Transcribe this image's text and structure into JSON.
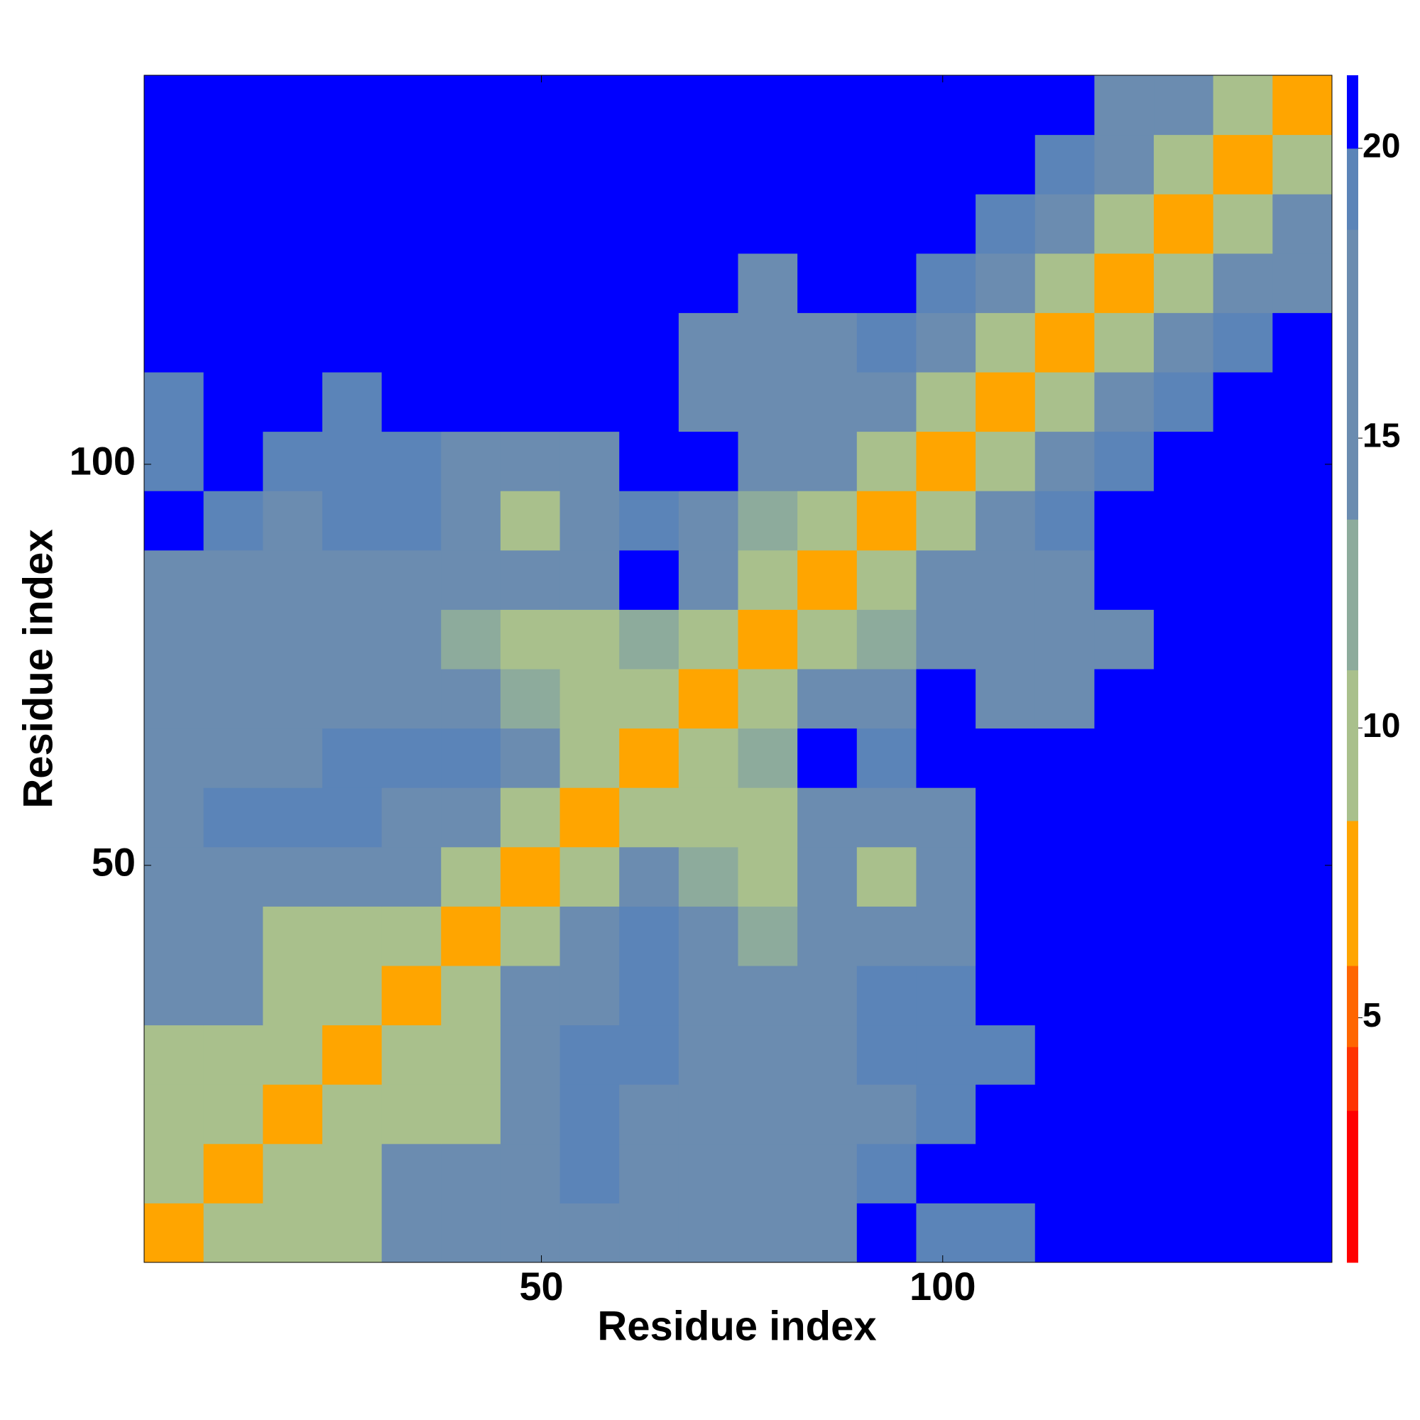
{
  "chart_data": {
    "type": "heatmap",
    "xlabel": "Residue index",
    "ylabel": "Residue index",
    "xlim": [
      0.5,
      148.5
    ],
    "ylim": [
      0.5,
      148.5
    ],
    "xticks": [
      50,
      100
    ],
    "yticks": [
      50,
      100
    ],
    "xbins": [
      0.5,
      7.9,
      15.3,
      22.7,
      30.1,
      37.5,
      44.9,
      52.3,
      59.7,
      67.1,
      74.5,
      81.9,
      89.3,
      96.7,
      104.1,
      111.5,
      118.9,
      126.3,
      133.7,
      141.1,
      148.5
    ],
    "ybins": [
      0.5,
      7.9,
      15.3,
      22.7,
      30.1,
      37.5,
      44.9,
      52.3,
      59.7,
      67.1,
      74.5,
      81.9,
      89.3,
      96.7,
      104.1,
      111.5,
      118.9,
      126.3,
      133.7,
      141.1,
      148.5
    ],
    "z": [
      [
        6,
        11,
        9,
        10,
        16,
        17,
        17,
        18,
        18,
        18,
        17,
        18,
        21,
        20,
        20,
        21,
        21,
        21,
        21,
        21
      ],
      [
        11,
        6,
        11,
        9,
        15,
        15,
        16,
        19,
        17,
        17,
        16,
        16,
        19,
        21,
        21,
        21,
        21,
        21,
        21,
        21
      ],
      [
        9,
        11,
        6,
        11,
        9,
        10,
        16,
        19,
        18,
        18,
        16,
        16,
        18,
        19,
        21,
        21,
        21,
        21,
        21,
        21
      ],
      [
        10,
        9,
        11,
        6,
        11,
        9,
        17,
        20,
        19,
        18,
        17,
        17,
        19,
        19,
        19,
        21,
        21,
        21,
        21,
        21
      ],
      [
        16,
        15,
        9,
        11,
        6,
        11,
        16,
        18,
        20,
        15,
        15,
        17,
        19,
        20,
        21,
        21,
        21,
        21,
        21,
        21
      ],
      [
        17,
        15,
        10,
        9,
        11,
        6,
        11,
        16,
        19,
        14,
        12,
        16,
        18,
        17,
        21,
        21,
        21,
        21,
        21,
        21
      ],
      [
        17,
        16,
        16,
        17,
        16,
        11,
        6,
        11,
        17,
        12,
        9,
        14,
        10,
        15,
        21,
        21,
        21,
        21,
        21,
        21
      ],
      [
        18,
        19,
        19,
        20,
        18,
        16,
        11,
        6,
        11,
        9,
        11,
        18,
        14,
        17,
        21,
        21,
        21,
        21,
        21,
        21
      ],
      [
        18,
        17,
        18,
        19,
        20,
        19,
        17,
        11,
        6,
        11,
        13,
        21,
        20,
        21,
        21,
        21,
        21,
        21,
        21,
        21
      ],
      [
        18,
        17,
        18,
        18,
        15,
        14,
        12,
        9,
        11,
        6,
        11,
        18,
        18,
        21,
        18,
        18,
        21,
        21,
        21,
        21
      ],
      [
        17,
        16,
        16,
        17,
        15,
        12,
        9,
        11,
        13,
        11,
        6,
        11,
        13,
        14,
        15,
        15,
        17,
        21,
        21,
        21
      ],
      [
        18,
        16,
        16,
        17,
        17,
        16,
        14,
        18,
        21,
        18,
        11,
        6,
        11,
        16,
        17,
        18,
        21,
        21,
        21,
        21
      ],
      [
        21,
        19,
        18,
        19,
        19,
        18,
        10,
        14,
        20,
        18,
        13,
        11,
        6,
        11,
        16,
        19,
        21,
        21,
        21,
        21
      ],
      [
        20,
        21,
        19,
        19,
        20,
        17,
        15,
        17,
        21,
        21,
        14,
        16,
        11,
        6,
        9,
        14,
        19,
        21,
        21,
        21
      ],
      [
        20,
        21,
        21,
        19,
        21,
        21,
        21,
        21,
        21,
        18,
        15,
        17,
        16,
        9,
        6,
        9,
        14,
        19,
        21,
        21
      ],
      [
        21,
        21,
        21,
        21,
        21,
        21,
        21,
        21,
        21,
        18,
        15,
        18,
        19,
        14,
        9,
        6,
        9,
        14,
        19,
        21
      ],
      [
        21,
        21,
        21,
        21,
        21,
        21,
        21,
        21,
        21,
        21,
        17,
        21,
        21,
        19,
        14,
        9,
        6,
        9,
        17,
        17
      ],
      [
        21,
        21,
        21,
        21,
        21,
        21,
        21,
        21,
        21,
        21,
        21,
        21,
        21,
        21,
        19,
        14,
        9,
        6,
        9,
        15
      ],
      [
        21,
        21,
        21,
        21,
        21,
        21,
        21,
        21,
        21,
        21,
        21,
        21,
        21,
        21,
        21,
        19,
        17,
        9,
        6,
        9
      ],
      [
        21,
        21,
        21,
        21,
        21,
        21,
        21,
        21,
        21,
        21,
        21,
        21,
        21,
        21,
        21,
        21,
        17,
        15,
        9,
        6
      ]
    ],
    "clim": [
      0.78,
      21.26
    ],
    "color_bounds": [
      0.78,
      3.4,
      4.5,
      5.9,
      8.4,
      11,
      13.6,
      18.6,
      20,
      21.26
    ],
    "colors": [
      "#ff0000",
      "#ff3300",
      "#ff6600",
      "#ffa500",
      "#a9c08c",
      "#8dab9c",
      "#6b8cb0",
      "#5b84b8",
      "#0000ff"
    ],
    "cticks": [
      5,
      10,
      15,
      20
    ]
  }
}
